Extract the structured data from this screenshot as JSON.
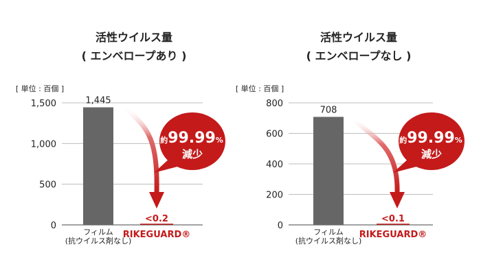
{
  "chart_data": [
    {
      "type": "bar",
      "title": "活性ウイルス量",
      "subtitle": "( エンベロープあり )",
      "unit_label": "[ 単位 : 百個 ]",
      "categories": [
        "フィルム\n(抗ウイルス剤なし)",
        "RIKEGUARD®"
      ],
      "values": [
        1445,
        0.2
      ],
      "data_labels": [
        "1,445",
        "<0.2"
      ],
      "yticks": [
        0,
        500,
        1000,
        1500
      ],
      "ytick_labels": [
        "0",
        "500",
        "1,000",
        "1,500"
      ],
      "ylim": [
        0,
        1500
      ],
      "grid": true,
      "bar_color": "#666666",
      "accent_color": "#c41a1a",
      "badge": {
        "prefix": "約",
        "value": "99.99",
        "suffix": "%",
        "sub": "減少"
      }
    },
    {
      "type": "bar",
      "title": "活性ウイルス量",
      "subtitle": "( エンベロープなし )",
      "unit_label": "[ 単位 : 百個 ]",
      "categories": [
        "フィルム\n(抗ウイルス剤なし)",
        "RIKEGUARD®"
      ],
      "values": [
        708,
        0.1
      ],
      "data_labels": [
        "708",
        "<0.1"
      ],
      "yticks": [
        0,
        200,
        400,
        600,
        800
      ],
      "ytick_labels": [
        "0",
        "200",
        "400",
        "600",
        "800"
      ],
      "ylim": [
        0,
        800
      ],
      "grid": true,
      "bar_color": "#666666",
      "accent_color": "#c41a1a",
      "badge": {
        "prefix": "約",
        "value": "99.99",
        "suffix": "%",
        "sub": "減少"
      }
    }
  ]
}
